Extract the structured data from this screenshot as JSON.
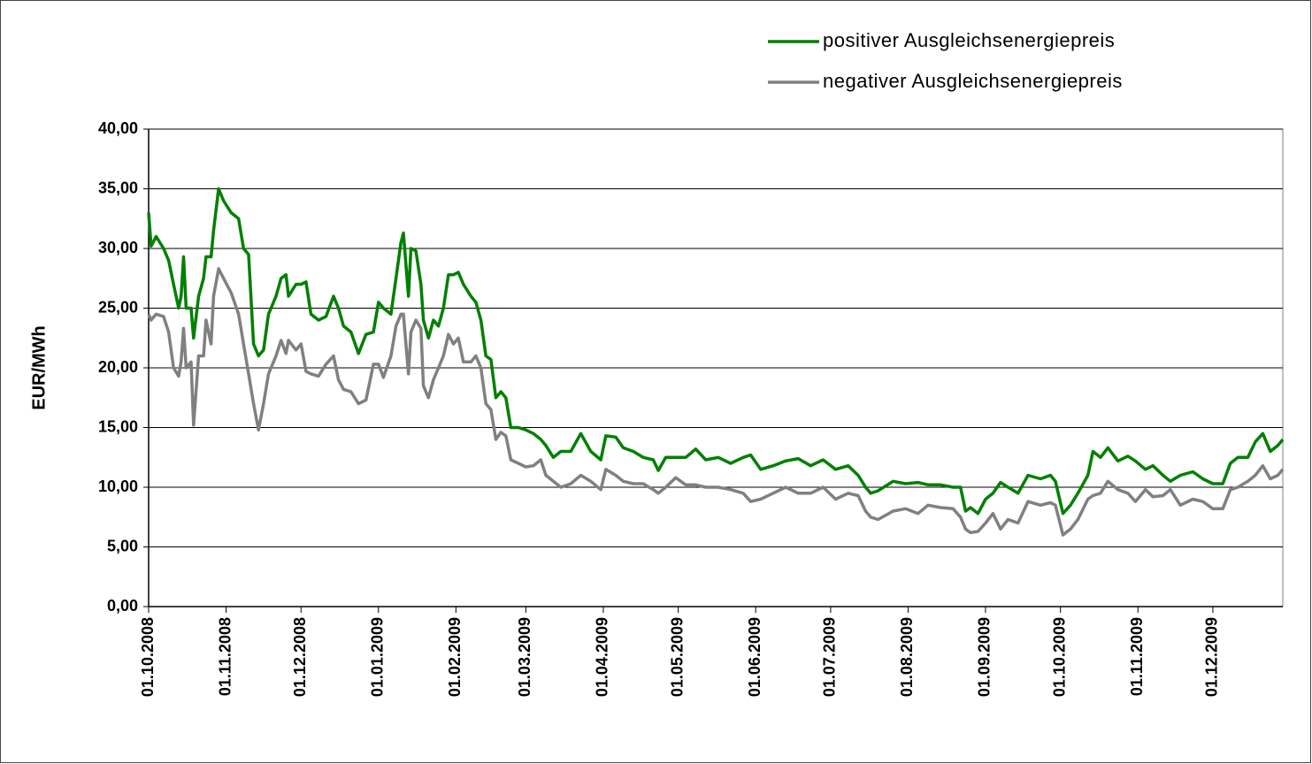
{
  "chart_data": {
    "type": "line",
    "ylabel": "EUR/MWh",
    "x": [
      "01.10.2008",
      "02.10.2008",
      "04.10.2008",
      "07.10.2008",
      "09.10.2008",
      "11.10.2008",
      "13.10.2008",
      "14.10.2008",
      "15.10.2008",
      "16.10.2008",
      "18.10.2008",
      "19.10.2008",
      "21.10.2008",
      "23.10.2008",
      "24.10.2008",
      "26.10.2008",
      "27.10.2008",
      "29.10.2008",
      "31.10.2008",
      "03.11.2008",
      "06.11.2008",
      "08.11.2008",
      "10.11.2008",
      "12.11.2008",
      "14.11.2008",
      "16.11.2008",
      "18.11.2008",
      "21.11.2008",
      "23.11.2008",
      "25.11.2008",
      "26.11.2008",
      "29.11.2008",
      "01.12.2008",
      "03.12.2008",
      "05.12.2008",
      "08.12.2008",
      "11.12.2008",
      "14.12.2008",
      "16.12.2008",
      "18.12.2008",
      "21.12.2008",
      "24.12.2008",
      "27.12.2008",
      "30.12.2008",
      "01.01.2009",
      "03.01.2009",
      "06.01.2009",
      "08.01.2009",
      "10.01.2009",
      "11.01.2009",
      "13.01.2009",
      "14.01.2009",
      "16.01.2009",
      "18.01.2009",
      "19.01.2009",
      "21.01.2009",
      "23.01.2009",
      "25.01.2009",
      "27.01.2009",
      "29.01.2009",
      "31.01.2009",
      "02.02.2009",
      "04.02.2009",
      "07.02.2009",
      "09.02.2009",
      "11.02.2009",
      "13.02.2009",
      "15.02.2009",
      "17.02.2009",
      "19.02.2009",
      "21.02.2009",
      "23.02.2009",
      "26.02.2009",
      "01.03.2009",
      "04.03.2009",
      "07.03.2009",
      "09.03.2009",
      "12.03.2009",
      "15.03.2009",
      "19.03.2009",
      "23.03.2009",
      "27.03.2009",
      "31.03.2009",
      "02.04.2009",
      "06.04.2009",
      "09.04.2009",
      "13.04.2009",
      "17.04.2009",
      "21.04.2009",
      "23.04.2009",
      "26.04.2009",
      "30.04.2009",
      "04.05.2009",
      "08.05.2009",
      "12.05.2009",
      "17.05.2009",
      "22.05.2009",
      "27.05.2009",
      "30.05.2009",
      "03.06.2009",
      "08.06.2009",
      "13.06.2009",
      "18.06.2009",
      "23.06.2009",
      "28.06.2009",
      "03.07.2009",
      "08.07.2009",
      "12.07.2009",
      "15.07.2009",
      "17.07.2009",
      "20.07.2009",
      "26.07.2009",
      "31.07.2009",
      "05.08.2009",
      "09.08.2009",
      "14.08.2009",
      "19.08.2009",
      "22.08.2009",
      "24.08.2009",
      "26.08.2009",
      "29.08.2009",
      "01.09.2009",
      "04.09.2009",
      "07.09.2009",
      "10.09.2009",
      "14.09.2009",
      "18.09.2009",
      "23.09.2009",
      "27.09.2009",
      "29.09.2009",
      "02.10.2009",
      "05.10.2009",
      "08.10.2009",
      "12.10.2009",
      "14.10.2009",
      "17.10.2009",
      "20.10.2009",
      "24.10.2009",
      "28.10.2009",
      "31.10.2009",
      "04.11.2009",
      "07.11.2009",
      "11.11.2009",
      "14.11.2009",
      "18.11.2009",
      "23.11.2009",
      "27.11.2009",
      "01.12.2009",
      "05.12.2009",
      "08.12.2009",
      "11.12.2009",
      "15.12.2009",
      "18.12.2009",
      "21.12.2009",
      "24.12.2009",
      "27.12.2009",
      "29.12.2009"
    ],
    "series": [
      {
        "name": "positiver Ausgleichsenergiepreis",
        "color": "#008000",
        "values": [
          33,
          30.2,
          31,
          30,
          29,
          27,
          25,
          26,
          29.3,
          25,
          25,
          22.5,
          26,
          27.5,
          29.3,
          29.3,
          31.5,
          35,
          34,
          33,
          32.5,
          30,
          29.5,
          22,
          21,
          21.5,
          24.5,
          26,
          27.5,
          27.8,
          26,
          27,
          27,
          27.2,
          24.5,
          24,
          24.3,
          26,
          25,
          23.5,
          23,
          21.2,
          22.8,
          23,
          25.5,
          25,
          24.5,
          27.5,
          30.5,
          31.3,
          26,
          30,
          29.8,
          27,
          24,
          22.5,
          24,
          23.5,
          25,
          27.8,
          27.8,
          28,
          27,
          26,
          25.5,
          24,
          21,
          20.7,
          17.5,
          18,
          17.5,
          15,
          15,
          14.8,
          14.5,
          14,
          13.5,
          12.5,
          13,
          13,
          14.5,
          13,
          12.3,
          14.3,
          14.2,
          13.3,
          13,
          12.5,
          12.3,
          11.4,
          12.5,
          12.5,
          12.5,
          13.2,
          12.3,
          12.5,
          12,
          12.5,
          12.7,
          11.5,
          11.8,
          12.2,
          12.4,
          11.8,
          12.3,
          11.5,
          11.8,
          11,
          10,
          9.5,
          9.7,
          10.5,
          10.3,
          10.4,
          10.2,
          10.2,
          10,
          10,
          8,
          8.3,
          7.8,
          9,
          9.5,
          10.4,
          10,
          9.5,
          11,
          10.7,
          11,
          10.5,
          7.8,
          8.5,
          9.5,
          11,
          13,
          12.5,
          13.3,
          12.2,
          12.6,
          12.2,
          11.5,
          11.8,
          11,
          10.5,
          11,
          11.3,
          10.7,
          10.3,
          10.3,
          12,
          12.5,
          12.5,
          13.8,
          14.5,
          13,
          13.5,
          14
        ]
      },
      {
        "name": "negativer Ausgleichsenergiepreis",
        "color": "#808080",
        "values": [
          24.5,
          24,
          24.5,
          24.3,
          23,
          20,
          19.3,
          20.5,
          23.3,
          20,
          20.5,
          15.2,
          21,
          21,
          24,
          22,
          26,
          28.3,
          27.5,
          26.3,
          24.5,
          22,
          19.5,
          17,
          14.8,
          17,
          19.5,
          21,
          22.3,
          21.2,
          22.3,
          21.5,
          22,
          19.7,
          19.5,
          19.3,
          20.3,
          21,
          19,
          18.2,
          18,
          17,
          17.3,
          20.3,
          20.3,
          19.2,
          21,
          23.5,
          24.5,
          24.5,
          19.5,
          23,
          24,
          23.3,
          18.5,
          17.5,
          19,
          20,
          21,
          22.8,
          22,
          22.5,
          20.5,
          20.5,
          21,
          20,
          17,
          16.5,
          14,
          14.6,
          14.3,
          12.3,
          12,
          11.7,
          11.8,
          12.3,
          11,
          10.5,
          10,
          10.3,
          11,
          10.5,
          9.8,
          11.5,
          11,
          10.5,
          10.3,
          10.3,
          9.8,
          9.5,
          10,
          10.8,
          10.2,
          10.2,
          10,
          10,
          9.8,
          9.5,
          8.8,
          9,
          9.5,
          10,
          9.5,
          9.5,
          10,
          9,
          9.5,
          9.3,
          8,
          7.5,
          7.3,
          8,
          8.2,
          7.8,
          8.5,
          8.3,
          8.2,
          7.5,
          6.5,
          6.2,
          6.3,
          7,
          7.8,
          6.5,
          7.3,
          7,
          8.8,
          8.5,
          8.7,
          8.5,
          6,
          6.5,
          7.3,
          9,
          9.3,
          9.5,
          10.5,
          9.8,
          9.5,
          8.8,
          9.8,
          9.2,
          9.3,
          9.8,
          8.5,
          9,
          8.8,
          8.2,
          8.2,
          9.8,
          10,
          10.5,
          11,
          11.8,
          10.7,
          11,
          11.5
        ]
      }
    ],
    "xlim": [
      "01.10.2008",
      "29.12.2009"
    ],
    "xticks": [
      "01.10.2008",
      "01.11.2008",
      "01.12.2008",
      "01.01.2009",
      "01.02.2009",
      "01.03.2009",
      "01.04.2009",
      "01.05.2009",
      "01.06.2009",
      "01.07.2009",
      "01.08.2009",
      "01.09.2009",
      "01.10.2009",
      "01.11.2009",
      "01.12.2009"
    ],
    "ylim": [
      0,
      40
    ],
    "yticks": [
      {
        "value": 0,
        "label": "0,00"
      },
      {
        "value": 5,
        "label": "5,00"
      },
      {
        "value": 10,
        "label": "10,00"
      },
      {
        "value": 15,
        "label": "15,00"
      },
      {
        "value": 20,
        "label": "20,00"
      },
      {
        "value": 25,
        "label": "25,00"
      },
      {
        "value": 30,
        "label": "30,00"
      },
      {
        "value": 35,
        "label": "35,00"
      },
      {
        "value": 40,
        "label": "40,00"
      }
    ],
    "grid": true,
    "legend": "top-right"
  }
}
